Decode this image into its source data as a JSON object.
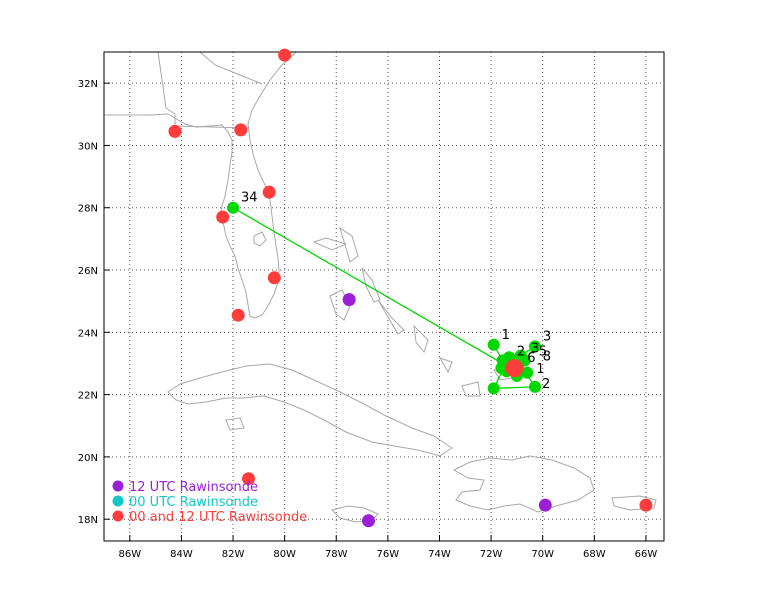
{
  "map": {
    "lon_range": [
      -87.0,
      -65.3
    ],
    "lat_range": [
      17.3,
      33.0
    ],
    "lon_ticks": [
      {
        "value": -86,
        "label": "86W"
      },
      {
        "value": -84,
        "label": "84W"
      },
      {
        "value": -82,
        "label": "82W"
      },
      {
        "value": -80,
        "label": "80W"
      },
      {
        "value": -78,
        "label": "78W"
      },
      {
        "value": -76,
        "label": "76W"
      },
      {
        "value": -74,
        "label": "74W"
      },
      {
        "value": -72,
        "label": "72W"
      },
      {
        "value": -70,
        "label": "70W"
      },
      {
        "value": -68,
        "label": "68W"
      },
      {
        "value": -66,
        "label": "66W"
      }
    ],
    "lat_ticks": [
      {
        "value": 18,
        "label": "18N"
      },
      {
        "value": 20,
        "label": "20N"
      },
      {
        "value": 22,
        "label": "22N"
      },
      {
        "value": 24,
        "label": "24N"
      },
      {
        "value": 26,
        "label": "26N"
      },
      {
        "value": 28,
        "label": "28N"
      },
      {
        "value": 30,
        "label": "30N"
      },
      {
        "value": 32,
        "label": "32N"
      }
    ],
    "grid": "dotted",
    "colors": {
      "frame": "#000000",
      "coast": "#a8a8a8",
      "grid": "#555555",
      "track": "#00d800",
      "sonde_12": "#9b1fd6",
      "sonde_00": "#10c8c8",
      "sonde_both": "#ff3c3c",
      "current_storm": "#ff3c3c"
    }
  },
  "legend": [
    {
      "label": "12 UTC Rawinsonde",
      "color": "#9b1fd6"
    },
    {
      "label": "00 UTC Rawinsonde",
      "color": "#10c8c8"
    },
    {
      "label": "00 and 12 UTC Rawinsonde",
      "color": "#ff3c3c"
    }
  ],
  "rawinsondes": [
    {
      "type": "12",
      "lon": -77.5,
      "lat": 25.05
    },
    {
      "type": "12",
      "lon": -76.75,
      "lat": 17.95
    },
    {
      "type": "12",
      "lon": -69.9,
      "lat": 18.45
    },
    {
      "type": "both",
      "lon": -80.0,
      "lat": 32.9
    },
    {
      "type": "both",
      "lon": -84.25,
      "lat": 30.45
    },
    {
      "type": "both",
      "lon": -81.7,
      "lat": 30.5
    },
    {
      "type": "both",
      "lon": -80.6,
      "lat": 28.5
    },
    {
      "type": "both",
      "lon": -82.4,
      "lat": 27.7
    },
    {
      "type": "both",
      "lon": -80.4,
      "lat": 25.75
    },
    {
      "type": "both",
      "lon": -81.8,
      "lat": 24.55
    },
    {
      "type": "both",
      "lon": -81.4,
      "lat": 19.3
    },
    {
      "type": "both",
      "lon": -66.0,
      "lat": 18.45
    }
  ],
  "track": [
    {
      "label": "1",
      "lon": -71.9,
      "lat": 23.6,
      "label_pos": "above-right"
    },
    {
      "label": "",
      "lon": -71.55,
      "lat": 23.1,
      "label_pos": "none"
    },
    {
      "label": "",
      "lon": -71.3,
      "lat": 23.2,
      "label_pos": "none"
    },
    {
      "label": "",
      "lon": -70.85,
      "lat": 23.25,
      "label_pos": "none"
    },
    {
      "label": "3",
      "lon": -70.3,
      "lat": 23.55,
      "label_pos": "above-right"
    },
    {
      "label": "",
      "lon": -70.7,
      "lat": 23.1,
      "label_pos": "none"
    },
    {
      "label": "",
      "lon": -71.4,
      "lat": 22.75,
      "label_pos": "none"
    },
    {
      "label": "",
      "lon": -71.0,
      "lat": 22.6,
      "label_pos": "none"
    },
    {
      "label": "",
      "lon": -70.6,
      "lat": 22.7,
      "label_pos": "none"
    },
    {
      "label": "",
      "lon": -71.6,
      "lat": 22.85,
      "label_pos": "none"
    },
    {
      "label": "",
      "lon": -70.9,
      "lat": 23.0,
      "label_pos": "none"
    },
    {
      "label": "2",
      "lon": -70.3,
      "lat": 22.25,
      "label_pos": "right"
    },
    {
      "label": "",
      "lon": -71.9,
      "lat": 22.2,
      "label_pos": "none"
    },
    {
      "label": "",
      "lon": -71.45,
      "lat": 22.95,
      "label_pos": "none"
    },
    {
      "label": "34",
      "lon": -82.0,
      "lat": 28.0,
      "label_pos": "above-right"
    }
  ],
  "cluster_labels": [
    {
      "text": "3",
      "lon": -70.45,
      "lat": 23.35
    },
    {
      "text": "5",
      "lon": -70.15,
      "lat": 23.25
    },
    {
      "text": "8",
      "lon": -70.0,
      "lat": 23.1
    },
    {
      "text": "6",
      "lon": -70.6,
      "lat": 23.05
    },
    {
      "text": "2",
      "lon": -71.0,
      "lat": 23.25
    },
    {
      "text": "1",
      "lon": -70.25,
      "lat": 22.7
    }
  ],
  "current_position": {
    "lon": -71.1,
    "lat": 22.85
  }
}
